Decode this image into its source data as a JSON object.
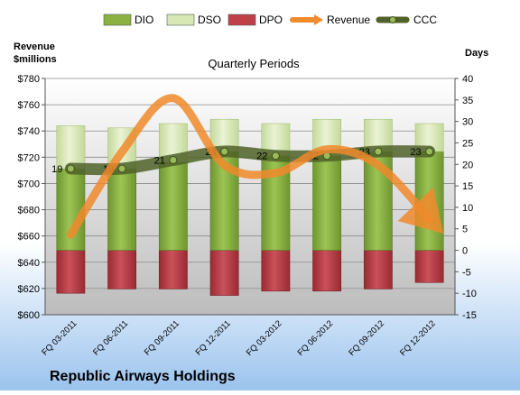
{
  "chart_data": {
    "type": "bar",
    "title": "Quarterly Periods",
    "company": "Republic Airways Holdings",
    "left_axis_label": [
      "Revenue",
      "$millions"
    ],
    "right_axis_label": "Days",
    "categories": [
      "FQ 03-2011",
      "FQ 06-2011",
      "FQ 09-2011",
      "FQ 12-2011",
      "FQ 03-2012",
      "FQ 06-2012",
      "FQ 09-2012",
      "FQ 12-2012"
    ],
    "left_axis": {
      "min": 600,
      "max": 780,
      "step": 20,
      "ticks": [
        "$600",
        "$620",
        "$640",
        "$660",
        "$680",
        "$700",
        "$720",
        "$740",
        "$760",
        "$780"
      ]
    },
    "right_axis": {
      "min": -15,
      "max": 40,
      "step": 5,
      "ticks": [
        "-15",
        "-10",
        "-5",
        "0",
        "5",
        "10",
        "15",
        "20",
        "25",
        "30",
        "35",
        "40"
      ]
    },
    "legend": [
      {
        "name": "DIO",
        "type": "bar",
        "color": "#8bb142"
      },
      {
        "name": "DSO",
        "type": "bar",
        "color": "#d8e8b4"
      },
      {
        "name": "DPO",
        "type": "bar",
        "color": "#c0404a"
      },
      {
        "name": "Revenue",
        "type": "line",
        "color": "#f08a2c"
      },
      {
        "name": "CCC",
        "type": "line",
        "color": "#4f6228"
      }
    ],
    "series": [
      {
        "name": "DIO",
        "axis": "right",
        "values": [
          19,
          19,
          20.5,
          23,
          22,
          22,
          23,
          23
        ]
      },
      {
        "name": "DSO",
        "axis": "right",
        "values": [
          10,
          9.5,
          9,
          7.5,
          7.5,
          8.5,
          7.5,
          6.5
        ]
      },
      {
        "name": "DPO",
        "axis": "right",
        "values": [
          -10,
          -9,
          -9,
          -10.5,
          -9.5,
          -9.5,
          -9,
          -7.5
        ]
      },
      {
        "name": "Revenue",
        "axis": "left",
        "values": [
          661,
          724,
          765,
          714,
          708,
          726,
          714,
          673
        ]
      },
      {
        "name": "CCC",
        "axis": "right",
        "values": [
          19,
          19,
          21,
          23,
          22,
          22,
          23,
          23
        ],
        "labels": [
          "19",
          "19",
          "21",
          "23",
          "22",
          "22",
          "23",
          "23"
        ]
      }
    ],
    "grid": true,
    "legend_position": "top"
  }
}
